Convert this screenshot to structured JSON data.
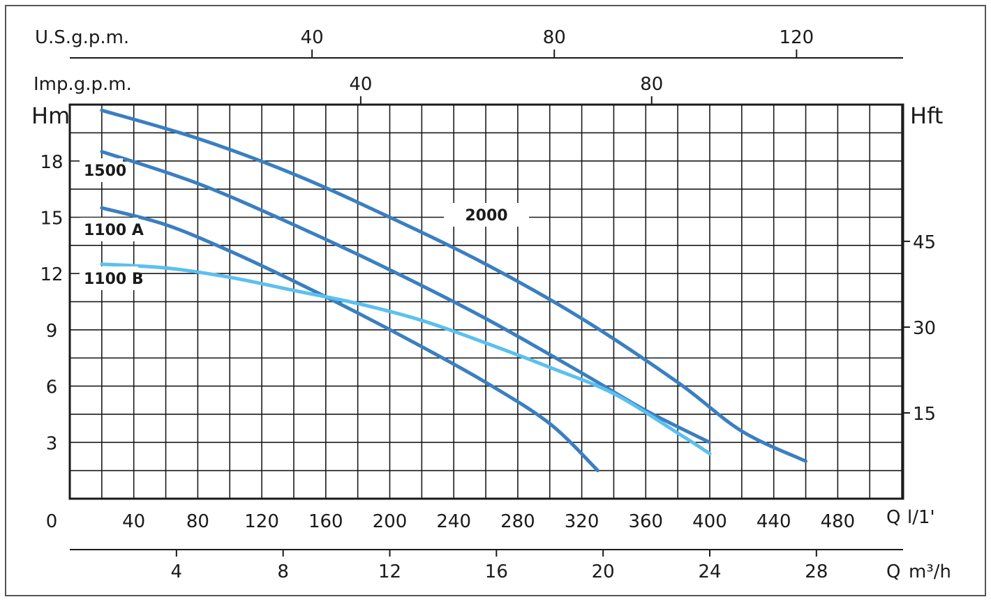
{
  "chart_data": {
    "type": "line",
    "units": {
      "head_m": "Hm",
      "head_ft": "Hft",
      "flow_lpm_symbol": "Q",
      "flow_lpm": "l/1'",
      "flow_m3h_symbol": "Q",
      "flow_m3h": "m³/h",
      "usgpm": "U.S.g.p.m.",
      "impgpm": "Imp.g.p.m."
    },
    "x_axis": {
      "origin_label": "0",
      "lim": [
        0,
        520
      ],
      "major_ticks": [
        40,
        80,
        120,
        160,
        200,
        240,
        280,
        320,
        360,
        400,
        440,
        480
      ],
      "grid_ticks": [
        0,
        20,
        40,
        60,
        80,
        100,
        120,
        140,
        160,
        180,
        200,
        220,
        240,
        260,
        280,
        300,
        320,
        340,
        360,
        380,
        400,
        420,
        440,
        460,
        480,
        500,
        520
      ]
    },
    "y_axis": {
      "lim": [
        0,
        21
      ],
      "major_ticks": [
        3,
        6,
        9,
        12,
        15,
        18
      ],
      "grid_ticks": [
        0,
        1.5,
        3,
        4.5,
        6,
        7.5,
        9,
        10.5,
        12,
        13.5,
        15,
        16.5,
        18,
        19.5,
        21
      ]
    },
    "y2_axis": {
      "ticks": [
        15,
        30,
        45
      ]
    },
    "x_m3h_axis": {
      "ticks": [
        4,
        8,
        12,
        16,
        20,
        24,
        28
      ]
    },
    "x_usgpm_axis": {
      "ticks": [
        40,
        80,
        120
      ]
    },
    "x_impgpm_axis": {
      "ticks": [
        40,
        80
      ]
    },
    "series": [
      {
        "name": "2000",
        "color": "#3a7fc1",
        "x": [
          20,
          80,
          140,
          200,
          260,
          320,
          380,
          420,
          460
        ],
        "y": [
          20.7,
          19.2,
          17.3,
          15.0,
          12.5,
          9.6,
          6.2,
          3.6,
          2.0
        ]
      },
      {
        "name": "1500",
        "color": "#3a7fc1",
        "x": [
          20,
          80,
          140,
          200,
          260,
          320,
          360,
          400
        ],
        "y": [
          18.5,
          16.8,
          14.6,
          12.2,
          9.6,
          6.7,
          4.7,
          3.0
        ]
      },
      {
        "name": "1100 A",
        "color": "#3a7fc1",
        "x": [
          20,
          60,
          100,
          140,
          180,
          220,
          260,
          300,
          330
        ],
        "y": [
          15.5,
          14.6,
          13.2,
          11.6,
          9.9,
          8.1,
          6.2,
          4.0,
          1.5
        ]
      },
      {
        "name": "1100 B",
        "color": "#5bc0ee",
        "x": [
          20,
          60,
          100,
          140,
          180,
          220,
          260,
          300,
          340,
          380,
          400
        ],
        "y": [
          12.5,
          12.3,
          11.8,
          11.1,
          10.4,
          9.5,
          8.3,
          7.0,
          5.6,
          3.5,
          2.4
        ]
      }
    ]
  }
}
